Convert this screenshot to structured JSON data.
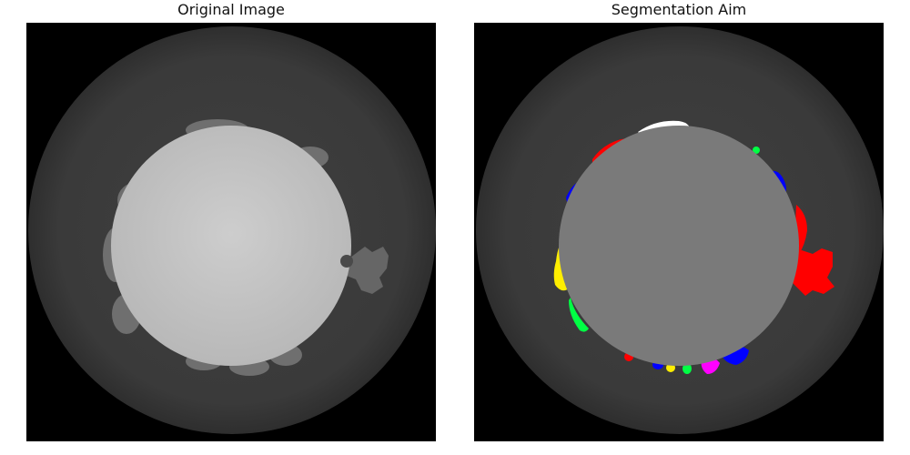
{
  "figure": {
    "panels": [
      {
        "title": "Original Image"
      },
      {
        "title": "Segmentation Aim"
      }
    ]
  },
  "colors": {
    "background": "#000000",
    "outer_ring": "#3b3b3b",
    "original_core": "#c4c4c4",
    "original_halo": "#707070",
    "segmented_core": "#7a7a7a",
    "segment_white": "#ffffff",
    "segment_red": "#ff0000",
    "segment_blue": "#0000ff",
    "segment_green": "#00ff44",
    "segment_yellow": "#ffee00",
    "segment_magenta": "#ff00ff"
  }
}
